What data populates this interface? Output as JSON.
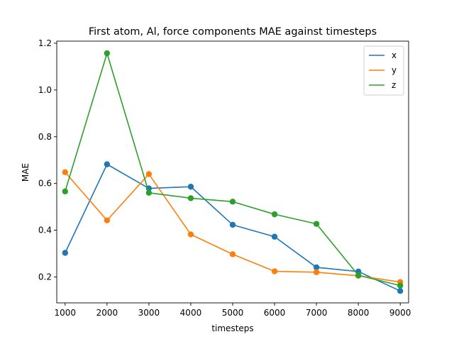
{
  "chart_data": {
    "type": "line",
    "title": "First atom, Al, force components MAE against timesteps",
    "xlabel": "timesteps",
    "ylabel": "MAE",
    "x": [
      1000,
      2000,
      3000,
      4000,
      5000,
      6000,
      7000,
      8000,
      9000
    ],
    "xlim": [
      800,
      9200
    ],
    "ylim": [
      0.089,
      1.209
    ],
    "xticks": [
      1000,
      2000,
      3000,
      4000,
      5000,
      6000,
      7000,
      8000,
      9000
    ],
    "yticks": [
      0.2,
      0.4,
      0.6,
      0.8,
      1.0,
      1.2
    ],
    "ytick_labels": [
      "0.2",
      "0.4",
      "0.6",
      "0.8",
      "1.0",
      "1.2"
    ],
    "grid": false,
    "legend_position": "top-right",
    "series": [
      {
        "name": "x",
        "color": "#1f77b4",
        "values": [
          0.303,
          0.682,
          0.579,
          0.586,
          0.423,
          0.372,
          0.241,
          0.223,
          0.14
        ]
      },
      {
        "name": "y",
        "color": "#ff7f0e",
        "values": [
          0.648,
          0.442,
          0.64,
          0.382,
          0.297,
          0.224,
          0.22,
          0.205,
          0.178
        ]
      },
      {
        "name": "z",
        "color": "#2ca02c",
        "values": [
          0.566,
          1.157,
          0.56,
          0.537,
          0.522,
          0.468,
          0.427,
          0.207,
          0.163
        ]
      }
    ]
  }
}
